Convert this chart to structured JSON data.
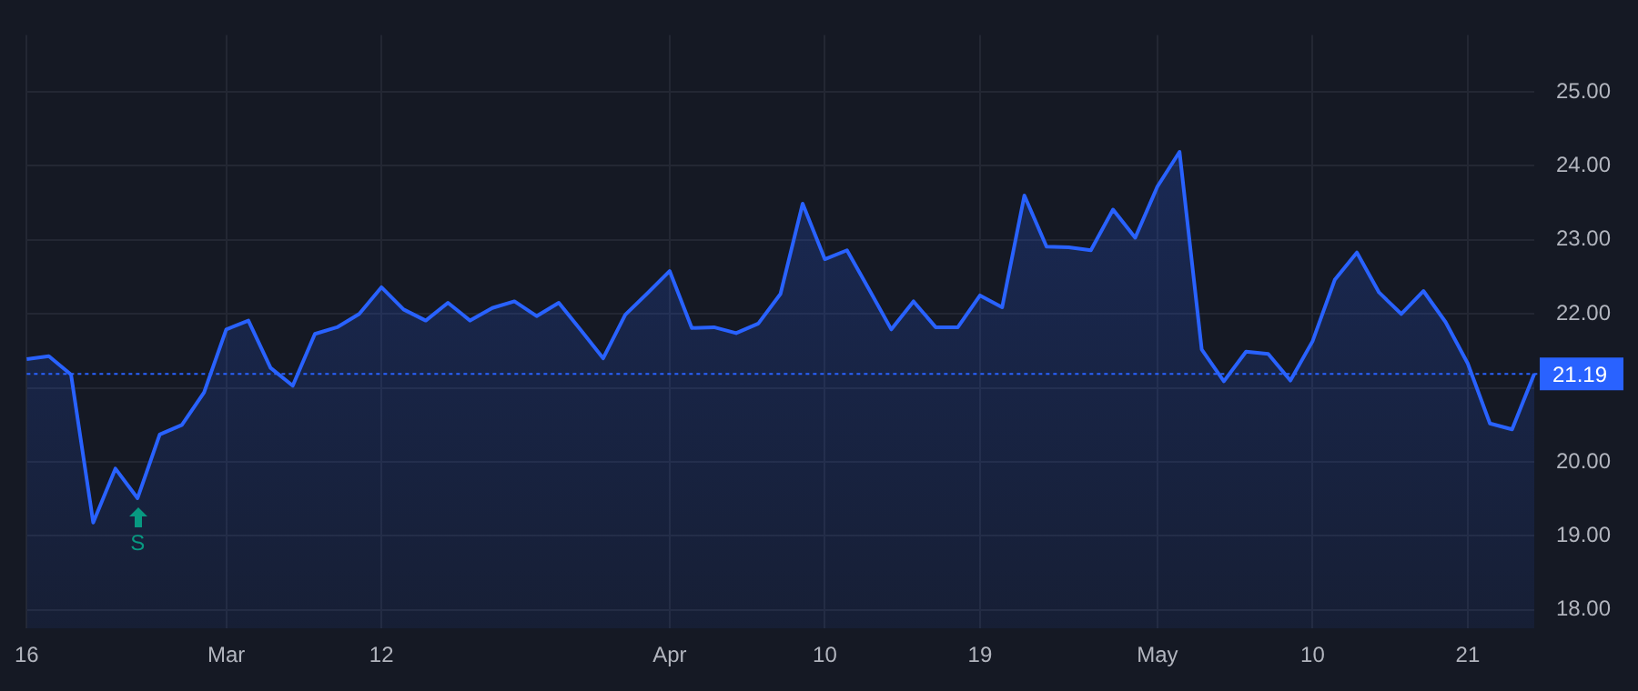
{
  "chart_data": {
    "type": "area",
    "categories": [
      "16",
      null,
      null,
      null,
      null,
      null,
      null,
      null,
      null,
      "Mar",
      null,
      null,
      null,
      null,
      null,
      null,
      "12",
      null,
      null,
      null,
      null,
      null,
      null,
      null,
      null,
      null,
      null,
      null,
      null,
      "Apr",
      null,
      null,
      null,
      null,
      null,
      null,
      "10",
      null,
      null,
      null,
      null,
      null,
      null,
      "19",
      null,
      null,
      null,
      null,
      null,
      null,
      null,
      "May",
      null,
      null,
      null,
      null,
      null,
      null,
      "10",
      null,
      null,
      null,
      null,
      null,
      null,
      "21",
      null,
      null,
      null
    ],
    "series": [
      {
        "color": "#2962ff",
        "values": [
          21.39,
          21.43,
          21.18,
          19.18,
          19.91,
          19.51,
          20.37,
          20.5,
          20.94,
          21.79,
          21.91,
          21.27,
          21.03,
          21.73,
          21.82,
          22.0,
          22.36,
          22.06,
          21.91,
          22.15,
          21.91,
          22.08,
          22.17,
          21.97,
          22.15,
          21.78,
          21.4,
          21.99,
          22.28,
          22.58,
          21.81,
          21.82,
          21.74,
          21.87,
          22.27,
          23.49,
          22.74,
          22.86,
          22.33,
          21.79,
          22.17,
          21.82,
          21.82,
          22.25,
          22.09,
          23.6,
          22.91,
          22.9,
          22.86,
          23.41,
          23.03,
          23.72,
          24.19,
          21.52,
          21.09,
          21.49,
          21.46,
          21.1,
          21.63,
          22.46,
          22.83,
          22.29,
          22.0,
          22.31,
          21.89,
          21.33,
          20.52,
          20.44,
          21.19
        ]
      }
    ],
    "ylim": [
      17.75,
      25.77
    ],
    "yticks": [
      {
        "value": 18,
        "label": "18.00"
      },
      {
        "value": 19,
        "label": "19.00"
      },
      {
        "value": 20,
        "label": "20.00"
      },
      {
        "value": 21,
        "label": null
      },
      {
        "value": 22,
        "label": "22.00"
      },
      {
        "value": 23,
        "label": "23.00"
      },
      {
        "value": 24,
        "label": "24.00"
      },
      {
        "value": 25,
        "label": "25.00"
      }
    ],
    "grid": true,
    "legend": false,
    "marker": "none",
    "line_style": "solid",
    "ref_lines": [
      {
        "axis": "y",
        "value": 21.19,
        "label": "21.19",
        "color": "#2962ff",
        "line_style": "dotted"
      }
    ],
    "annotations": [
      {
        "text": "S",
        "y": 19.51
      }
    ]
  }
}
